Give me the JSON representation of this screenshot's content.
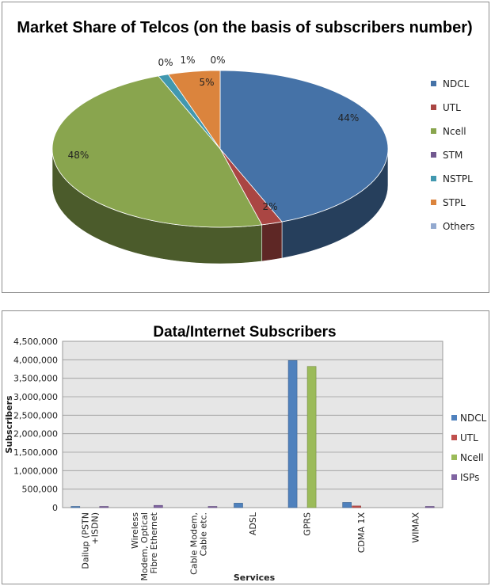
{
  "chart_data": [
    {
      "type": "pie",
      "title": "Market Share of Telcos (on the basis of subscribers number)",
      "legend_position": "right",
      "categories": [
        "NDCL",
        "UTL",
        "Ncell",
        "STM",
        "NSTPL",
        "STPL",
        "Others"
      ],
      "values": [
        44,
        2,
        48,
        0,
        1,
        5,
        0
      ],
      "labels": [
        "44%",
        "2%",
        "48%",
        "0%",
        "1%",
        "5%",
        "0%"
      ],
      "colors": [
        "#4572A7",
        "#AA4643",
        "#89A54E",
        "#71588F",
        "#4198AF",
        "#DB843D",
        "#93A9CF"
      ]
    },
    {
      "type": "bar",
      "title": "Data/Internet Subscribers",
      "xlabel": "Services",
      "ylabel": "Subscribers",
      "ylim": [
        0,
        4500000
      ],
      "yticks": [
        "0",
        "500,000",
        "1,000,000",
        "1,500,000",
        "2,000,000",
        "2,500,000",
        "3,000,000",
        "3,500,000",
        "4,000,000",
        "4,500,000"
      ],
      "grid": true,
      "legend_position": "right",
      "categories": [
        [
          "Dailup (PSTN",
          "+ISDN)"
        ],
        [
          "Wireless",
          "Modem, Optical",
          "Fibre Ethernet"
        ],
        [
          "Cable Modem,",
          "Cable etc."
        ],
        [
          "ADSL"
        ],
        [
          "GPRS"
        ],
        [
          "CDMA 1X"
        ],
        [
          "WIMAX"
        ]
      ],
      "series": [
        {
          "name": "NDCL",
          "color": "#4F81BD",
          "values": [
            10000,
            0,
            0,
            120000,
            3980000,
            140000,
            0
          ]
        },
        {
          "name": "UTL",
          "color": "#C0504D",
          "values": [
            0,
            0,
            0,
            0,
            0,
            45000,
            0
          ]
        },
        {
          "name": "Ncell",
          "color": "#9BBB59",
          "values": [
            0,
            0,
            0,
            0,
            3820000,
            0,
            0
          ]
        },
        {
          "name": "ISPs",
          "color": "#8064A2",
          "values": [
            12000,
            60000,
            20000,
            0,
            0,
            0,
            10000
          ]
        }
      ]
    }
  ]
}
